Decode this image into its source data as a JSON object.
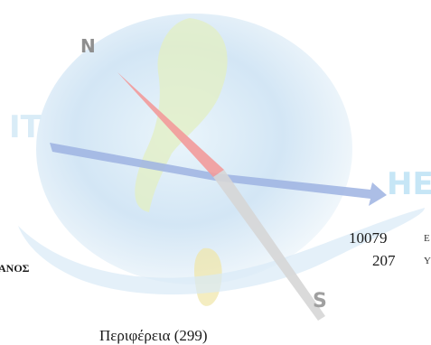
{
  "watermark": {
    "compass_letters": {
      "north": "N",
      "south": "S",
      "west": "IT",
      "east": "HE"
    },
    "colors": {
      "globe_blue": "#cfe2f4",
      "globe_green": "#e2efc6",
      "letter_n": "#8f8f8f",
      "letter_s": "#9a9a9a",
      "letter_it": "#d9ecf7",
      "letter_he": "#c6e6f6",
      "needle_red": "#f08a8a",
      "needle_grey": "#c7c7c7",
      "arrow_blue": "#8aa3d8"
    }
  },
  "content": {
    "stats": [
      {
        "value": "10079",
        "label_fragment": "Ε"
      },
      {
        "value": "207",
        "label_fragment": "Υ"
      }
    ],
    "section_label": "ΑΝΟΣ",
    "bottom_label": "Περιφέρεια (299)"
  }
}
